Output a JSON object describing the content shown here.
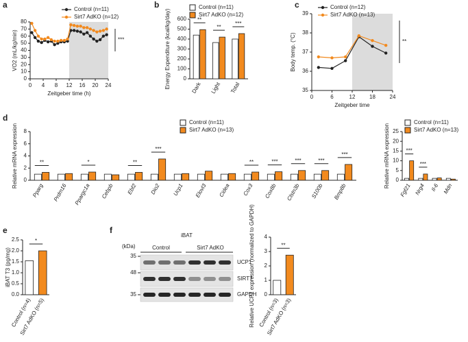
{
  "panel_labels": [
    "a",
    "b",
    "c",
    "d",
    "e",
    "f"
  ],
  "chart_data": [
    {
      "type": "line",
      "ylabel": "VO2 (mL/kg/min)",
      "xlabel": "Zeitgeber time (h)",
      "x": [
        0.5,
        1.5,
        2.5,
        3.5,
        4.5,
        5.5,
        6.5,
        7.5,
        8.5,
        9.5,
        10.5,
        11.5,
        12.5,
        13.5,
        14.5,
        15.5,
        16.5,
        17.5,
        18.5,
        19.5,
        20.5,
        21.5,
        22.5,
        23.5
      ],
      "xlim": [
        0,
        24
      ],
      "xticks": [
        0,
        4,
        8,
        12,
        16,
        20,
        24
      ],
      "ylim": [
        0,
        80
      ],
      "yticks": [
        0,
        10,
        20,
        30,
        40,
        50,
        60,
        70,
        80
      ],
      "shaded_x": [
        12,
        24
      ],
      "significance": "***",
      "series": [
        {
          "name": "Control (n=11)",
          "color": "#222222",
          "values": [
            65,
            58,
            53,
            51,
            54,
            52,
            53,
            48,
            50,
            52,
            52,
            53,
            68,
            68,
            67,
            66,
            63,
            65,
            60,
            56,
            53,
            55,
            60,
            62
          ]
        },
        {
          "name": "Sirt7 AdKO (n=12)",
          "color": "#f28a1e",
          "values": [
            78,
            68,
            60,
            56,
            56,
            58,
            55,
            53,
            53,
            54,
            54,
            56,
            76,
            75,
            74,
            74,
            72,
            72,
            70,
            68,
            66,
            67,
            68,
            70
          ]
        }
      ]
    },
    {
      "type": "bar",
      "ylabel": "Energy Expenditure (kcal/kg/day)",
      "categories": [
        "Dark",
        "Light",
        "Total"
      ],
      "ylim": [
        0,
        600
      ],
      "yticks": [
        0,
        100,
        200,
        300,
        400,
        500,
        600
      ],
      "significance": [
        "**",
        "**",
        "***"
      ],
      "series": [
        {
          "name": "Control (n=11)",
          "color": "#ffffff",
          "values": [
            440,
            365,
            400
          ]
        },
        {
          "name": "Sirt7 AdKO (n=12)",
          "color": "#f28a1e",
          "values": [
            495,
            420,
            455
          ]
        }
      ]
    },
    {
      "type": "line",
      "ylabel": "Body temp. (°C)",
      "xlabel": "Zeitgeber time",
      "x": [
        2,
        6,
        10,
        14,
        18,
        22
      ],
      "xlim": [
        0,
        24
      ],
      "xticks": [
        0,
        6,
        12,
        18,
        24
      ],
      "ylim": [
        35,
        39
      ],
      "yticks": [
        35,
        36,
        37,
        38,
        39
      ],
      "shaded_x": [
        12,
        24
      ],
      "significance": "**",
      "series": [
        {
          "name": "Control (n=12)",
          "color": "#222222",
          "values": [
            36.2,
            36.15,
            36.55,
            37.8,
            37.3,
            36.95
          ]
        },
        {
          "name": "Sirt7 AdKO (n=13)",
          "color": "#f28a1e",
          "values": [
            36.75,
            36.7,
            36.75,
            37.85,
            37.6,
            37.35
          ]
        }
      ]
    },
    {
      "type": "bar",
      "ylabel": "Relative mRNA expression",
      "categories": [
        "Pparg",
        "Prdm16",
        "Ppargc1a",
        "Cebpb",
        "Ebf2",
        "Dio2",
        "Ucp1",
        "Elovl3",
        "Cidea",
        "Cox3",
        "Cox8b",
        "Clstn3b",
        "S100b",
        "Bmp8b"
      ],
      "ylim": [
        0,
        8
      ],
      "yticks": [
        0,
        2,
        4,
        6,
        8
      ],
      "significance": [
        "**",
        null,
        "*",
        null,
        "**",
        "***",
        null,
        null,
        null,
        "**",
        "***",
        "***",
        "***",
        "***"
      ],
      "series": [
        {
          "name": "Control (n=11)",
          "color": "#ffffff",
          "values": [
            1,
            1,
            1,
            1,
            1,
            1,
            1,
            1,
            1,
            1,
            1,
            1,
            1,
            1
          ]
        },
        {
          "name": "Sirt7 AdKO (n=13)",
          "color": "#f28a1e",
          "values": [
            1.3,
            1.1,
            1.35,
            0.9,
            1.3,
            3.5,
            1.1,
            1.5,
            1.1,
            1.35,
            1.4,
            1.6,
            1.6,
            2.6
          ]
        }
      ]
    },
    {
      "type": "bar",
      "ylabel": "Relative mRNA expression",
      "categories": [
        "Fgf21",
        "Nrg4",
        "Il-6",
        "Mdn"
      ],
      "ylim": [
        0,
        25
      ],
      "yticks": [
        0,
        5,
        10,
        15,
        20,
        25
      ],
      "significance": [
        "***",
        "***",
        null,
        null
      ],
      "series": [
        {
          "name": "Control (n=11)",
          "color": "#ffffff",
          "values": [
            1,
            1,
            1,
            1
          ]
        },
        {
          "name": "Sirt7 AdKO (n=13)",
          "color": "#f28a1e",
          "values": [
            10,
            3.2,
            1.2,
            0.6
          ]
        }
      ]
    },
    {
      "type": "bar",
      "ylabel": "iBAT T3 (pg/mg)",
      "categories": [
        "Control (n=4)",
        "Sirt7 AdKO (n=5)"
      ],
      "ylim": [
        0,
        2.5
      ],
      "yticks": [
        {
          "value": 0,
          "label": "0.0"
        },
        0.5,
        {
          "value": 1,
          "label": "1.0"
        },
        1.5,
        {
          "value": 2,
          "label": "2.0"
        },
        2.5
      ],
      "significance": "*",
      "values": [
        1.55,
        2.0
      ],
      "colors": [
        "#ffffff",
        "#f28a1e"
      ]
    },
    {
      "type": "bar",
      "ylabel": "Relative UCP1 expression (normalized to GAPDH)",
      "categories": [
        "Control (n=3)",
        "Sirt7 AdKO (n=3)"
      ],
      "ylim": [
        0,
        4
      ],
      "yticks": [
        0,
        1,
        2,
        3,
        4
      ],
      "significance": "**",
      "values": [
        1.0,
        2.75
      ],
      "colors": [
        "#ffffff",
        "#f28a1e"
      ]
    }
  ],
  "blot": {
    "tissue": "iBAT",
    "unit": "(kDa)",
    "groups": [
      "Control",
      "Sirt7 AdKO"
    ],
    "markers": [
      "35",
      "48",
      "35"
    ],
    "proteins": [
      "UCP1",
      "SIRT7",
      "GAPDH"
    ]
  }
}
